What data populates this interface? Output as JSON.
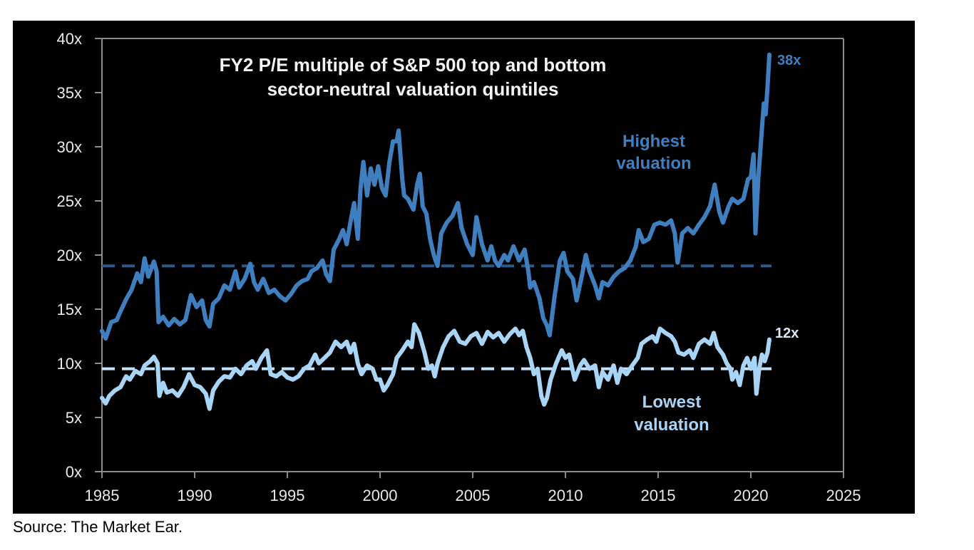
{
  "source": "Source: The Market Ear.",
  "chart_data": {
    "type": "line",
    "title": "FY2 P/E multiple of S&P 500 top and bottom",
    "subtitle": "sector-neutral valuation quintiles",
    "xlabel": "",
    "ylabel": "",
    "xlim": [
      1985,
      2025
    ],
    "ylim": [
      0,
      40
    ],
    "x_ticks": [
      1985,
      1990,
      1995,
      2000,
      2005,
      2010,
      2015,
      2020,
      2025
    ],
    "x_tick_labels": [
      "1985",
      "1990",
      "1995",
      "2000",
      "2005",
      "2010",
      "2015",
      "2020",
      "2025"
    ],
    "y_ticks": [
      0,
      5,
      10,
      15,
      20,
      25,
      30,
      35,
      40
    ],
    "y_tick_labels": [
      "0x",
      "5x",
      "10x",
      "15x",
      "20x",
      "25x",
      "30x",
      "35x",
      "40x"
    ],
    "grid": false,
    "legend": "none (inline annotations)",
    "annotations": [
      {
        "text_lines": [
          "Highest",
          "valuation"
        ],
        "series": "Highest valuation",
        "at": [
          2015,
          28.5
        ]
      },
      {
        "text_lines": [
          "Lowest",
          "valuation"
        ],
        "series": "Lowest valuation",
        "at": [
          2015,
          5.5
        ]
      },
      {
        "text": "38x",
        "series": "Highest valuation",
        "at": [
          2021.5,
          38.3
        ]
      },
      {
        "text": "12x",
        "series": "Lowest valuation",
        "at": [
          2021.5,
          12.8
        ]
      }
    ],
    "reference_lines": [
      {
        "name": "Highest valuation average",
        "value": 19.0,
        "style": "dashed",
        "color": "#2c5a87",
        "x_range": [
          1985,
          2021
        ]
      },
      {
        "name": "Lowest valuation average",
        "value": 9.5,
        "style": "dashed",
        "color": "#c4e2fa",
        "x_range": [
          1985,
          2021
        ]
      }
    ],
    "series": [
      {
        "name": "Highest valuation",
        "color": "#3f7fbf",
        "x": [
          1985.0,
          1985.2,
          1985.5,
          1985.8,
          1986.0,
          1986.3,
          1986.6,
          1986.9,
          1987.1,
          1987.3,
          1987.5,
          1987.8,
          1987.95,
          1988.05,
          1988.3,
          1988.6,
          1988.9,
          1989.2,
          1989.5,
          1989.8,
          1990.1,
          1990.4,
          1990.6,
          1990.8,
          1991.0,
          1991.3,
          1991.6,
          1991.9,
          1992.2,
          1992.4,
          1992.7,
          1993.0,
          1993.2,
          1993.4,
          1993.7,
          1994.0,
          1994.3,
          1994.6,
          1994.9,
          1995.2,
          1995.5,
          1995.8,
          1996.1,
          1996.3,
          1996.6,
          1996.9,
          1997.1,
          1997.3,
          1997.5,
          1997.8,
          1998.0,
          1998.2,
          1998.4,
          1998.6,
          1998.8,
          1998.95,
          1999.1,
          1999.3,
          1999.5,
          1999.7,
          1999.9,
          2000.1,
          2000.3,
          2000.5,
          2000.7,
          2000.9,
          2001.0,
          2001.2,
          2001.3,
          2001.5,
          2001.8,
          2002.0,
          2002.15,
          2002.3,
          2002.5,
          2002.7,
          2002.9,
          2003.1,
          2003.3,
          2003.6,
          2003.9,
          2004.2,
          2004.4,
          2004.7,
          2005.0,
          2005.2,
          2005.5,
          2005.8,
          2006.0,
          2006.2,
          2006.4,
          2006.7,
          2006.9,
          2007.2,
          2007.5,
          2007.8,
          2008.0,
          2008.1,
          2008.3,
          2008.6,
          2008.8,
          2009.0,
          2009.15,
          2009.4,
          2009.7,
          2009.9,
          2010.1,
          2010.4,
          2010.6,
          2010.9,
          2011.1,
          2011.3,
          2011.6,
          2011.8,
          2012.0,
          2012.3,
          2012.6,
          2012.9,
          2013.2,
          2013.5,
          2013.8,
          2013.95,
          2014.2,
          2014.5,
          2014.8,
          2015.1,
          2015.4,
          2015.7,
          2015.9,
          2016.05,
          2016.3,
          2016.6,
          2016.9,
          2017.2,
          2017.5,
          2017.8,
          2018.05,
          2018.3,
          2018.5,
          2018.8,
          2019.0,
          2019.3,
          2019.6,
          2019.85,
          2020.0,
          2020.15,
          2020.25,
          2020.4,
          2020.55,
          2020.7,
          2020.8,
          2020.9,
          2021.0
        ],
        "values": [
          13.0,
          12.3,
          13.8,
          14.0,
          14.8,
          15.9,
          16.8,
          18.3,
          17.5,
          19.7,
          18.0,
          19.4,
          18.5,
          13.8,
          14.3,
          13.5,
          14.1,
          13.6,
          14.0,
          16.3,
          15.2,
          15.8,
          14.0,
          13.4,
          15.5,
          16.0,
          17.2,
          16.8,
          18.5,
          17.0,
          17.8,
          19.2,
          17.5,
          16.8,
          17.8,
          16.5,
          16.8,
          16.2,
          15.8,
          16.4,
          17.2,
          17.6,
          17.8,
          18.5,
          18.8,
          19.5,
          18.2,
          17.6,
          20.5,
          21.5,
          22.3,
          21.0,
          23.0,
          24.8,
          21.5,
          26.2,
          28.6,
          25.5,
          28.0,
          26.5,
          28.2,
          26.2,
          25.5,
          28.5,
          30.5,
          30.5,
          31.5,
          27.0,
          25.5,
          25.2,
          24.2,
          26.5,
          27.5,
          24.5,
          23.8,
          21.5,
          20.0,
          19.0,
          22.0,
          23.0,
          23.6,
          24.8,
          22.5,
          21.0,
          20.0,
          23.5,
          21.0,
          19.5,
          20.8,
          19.5,
          19.0,
          20.0,
          19.5,
          20.8,
          19.5,
          20.5,
          18.5,
          17.0,
          17.5,
          16.0,
          14.2,
          13.5,
          12.6,
          16.0,
          19.5,
          20.2,
          18.5,
          17.8,
          15.8,
          18.2,
          20.0,
          18.5,
          17.2,
          16.0,
          17.5,
          17.2,
          18.0,
          18.5,
          18.8,
          19.5,
          20.8,
          22.3,
          21.2,
          21.5,
          22.8,
          23.0,
          22.8,
          23.2,
          22.0,
          19.3,
          22.0,
          22.5,
          22.0,
          22.8,
          23.5,
          24.5,
          26.5,
          24.0,
          23.0,
          24.5,
          25.2,
          24.8,
          25.2,
          27.0,
          27.2,
          29.3,
          22.0,
          27.0,
          30.5,
          34.0,
          33.0,
          35.5,
          38.5
        ]
      },
      {
        "name": "Lowest valuation",
        "color": "#a8d4f6",
        "x": [
          1985.0,
          1985.2,
          1985.4,
          1985.7,
          1986.0,
          1986.3,
          1986.5,
          1986.8,
          1987.1,
          1987.3,
          1987.6,
          1987.8,
          1988.0,
          1988.1,
          1988.3,
          1988.5,
          1988.8,
          1989.1,
          1989.4,
          1989.7,
          1990.0,
          1990.3,
          1990.6,
          1990.8,
          1991.0,
          1991.3,
          1991.6,
          1991.9,
          1992.2,
          1992.5,
          1992.8,
          1993.1,
          1993.3,
          1993.6,
          1993.9,
          1994.1,
          1994.4,
          1994.7,
          1995.0,
          1995.3,
          1995.6,
          1995.9,
          1996.2,
          1996.5,
          1996.7,
          1997.0,
          1997.3,
          1997.6,
          1997.9,
          1998.2,
          1998.4,
          1998.6,
          1998.8,
          1999.0,
          1999.3,
          1999.6,
          1999.8,
          2000.0,
          2000.2,
          2000.4,
          2000.7,
          2000.9,
          2001.2,
          2001.5,
          2001.7,
          2001.85,
          2002.1,
          2002.4,
          2002.6,
          2002.8,
          2002.95,
          2003.1,
          2003.4,
          2003.7,
          2004.0,
          2004.3,
          2004.6,
          2004.9,
          2005.2,
          2005.5,
          2005.8,
          2006.1,
          2006.4,
          2006.7,
          2007.0,
          2007.3,
          2007.5,
          2007.7,
          2007.9,
          2008.1,
          2008.3,
          2008.5,
          2008.7,
          2008.85,
          2009.0,
          2009.2,
          2009.5,
          2009.8,
          2010.0,
          2010.2,
          2010.5,
          2010.8,
          2011.0,
          2011.3,
          2011.6,
          2011.8,
          2012.0,
          2012.3,
          2012.6,
          2012.8,
          2013.0,
          2013.3,
          2013.6,
          2013.9,
          2014.1,
          2014.4,
          2014.7,
          2014.9,
          2015.1,
          2015.4,
          2015.7,
          2015.9,
          2016.1,
          2016.4,
          2016.7,
          2016.9,
          2017.2,
          2017.5,
          2017.8,
          2018.0,
          2018.2,
          2018.5,
          2018.7,
          2018.9,
          2019.0,
          2019.2,
          2019.4,
          2019.6,
          2019.8,
          2020.0,
          2020.2,
          2020.3,
          2020.45,
          2020.6,
          2020.75,
          2020.9,
          2021.0
        ],
        "values": [
          6.8,
          6.3,
          7.0,
          7.5,
          7.8,
          8.8,
          8.5,
          9.3,
          9.0,
          9.8,
          10.2,
          10.6,
          10.0,
          7.0,
          8.2,
          7.3,
          7.5,
          7.0,
          7.8,
          9.0,
          8.0,
          7.8,
          7.2,
          5.8,
          7.5,
          8.3,
          8.8,
          8.7,
          9.5,
          9.0,
          9.8,
          10.2,
          9.5,
          10.5,
          11.2,
          9.0,
          8.8,
          9.2,
          8.7,
          8.5,
          8.8,
          9.5,
          9.8,
          10.8,
          10.0,
          10.5,
          11.0,
          12.0,
          11.5,
          12.0,
          11.0,
          11.8,
          10.0,
          9.0,
          9.8,
          9.5,
          8.5,
          8.5,
          7.5,
          8.0,
          9.0,
          10.5,
          11.2,
          12.0,
          11.5,
          13.6,
          12.8,
          11.0,
          9.5,
          9.8,
          8.8,
          10.0,
          11.5,
          12.5,
          13.0,
          12.0,
          11.8,
          12.5,
          12.8,
          11.8,
          12.9,
          12.4,
          12.8,
          12.0,
          12.7,
          13.2,
          12.6,
          13.0,
          11.5,
          10.5,
          9.0,
          9.5,
          7.0,
          6.2,
          6.8,
          8.5,
          10.0,
          11.2,
          10.5,
          10.8,
          8.5,
          9.8,
          10.3,
          9.5,
          9.8,
          7.8,
          9.2,
          8.5,
          9.8,
          8.2,
          9.5,
          9.0,
          9.8,
          10.5,
          11.8,
          12.2,
          12.5,
          12.0,
          13.2,
          12.8,
          12.5,
          12.0,
          11.0,
          10.8,
          11.2,
          10.5,
          11.8,
          12.2,
          11.8,
          12.8,
          11.5,
          10.8,
          10.0,
          9.5,
          8.5,
          9.2,
          8.0,
          9.8,
          10.5,
          9.5,
          10.5,
          7.2,
          9.5,
          10.8,
          10.2,
          11.0,
          12.2
        ]
      }
    ]
  }
}
